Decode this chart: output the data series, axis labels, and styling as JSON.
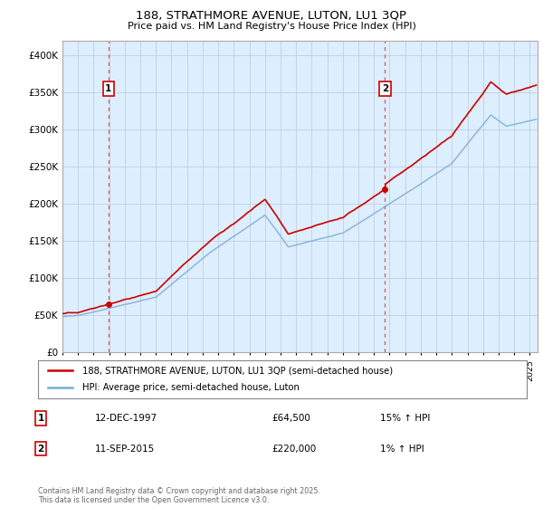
{
  "title": "188, STRATHMORE AVENUE, LUTON, LU1 3QP",
  "subtitle": "Price paid vs. HM Land Registry's House Price Index (HPI)",
  "ylabel_ticks": [
    "£0",
    "£50K",
    "£100K",
    "£150K",
    "£200K",
    "£250K",
    "£300K",
    "£350K",
    "£400K"
  ],
  "ytick_values": [
    0,
    50000,
    100000,
    150000,
    200000,
    250000,
    300000,
    350000,
    400000
  ],
  "ylim": [
    0,
    420000
  ],
  "xlim_start": 1995.0,
  "xlim_end": 2025.5,
  "marker1_x": 1997.95,
  "marker1_y": 64500,
  "marker1_label": "1",
  "marker2_x": 2015.7,
  "marker2_y": 220000,
  "marker2_label": "2",
  "legend_line1": "188, STRATHMORE AVENUE, LUTON, LU1 3QP (semi-detached house)",
  "legend_line2": "HPI: Average price, semi-detached house, Luton",
  "annotation1_num": "1",
  "annotation1_date": "12-DEC-1997",
  "annotation1_price": "£64,500",
  "annotation1_hpi": "15% ↑ HPI",
  "annotation2_num": "2",
  "annotation2_date": "11-SEP-2015",
  "annotation2_price": "£220,000",
  "annotation2_hpi": "1% ↑ HPI",
  "footer": "Contains HM Land Registry data © Crown copyright and database right 2025.\nThis data is licensed under the Open Government Licence v3.0.",
  "line_color_red": "#cc0000",
  "line_color_blue": "#7aadd4",
  "marker_color_red": "#cc0000",
  "bg_color": "#ffffff",
  "plot_bg_color": "#ddeeff",
  "grid_color": "#c0cfe0",
  "dashed_line_color": "#dd4444"
}
